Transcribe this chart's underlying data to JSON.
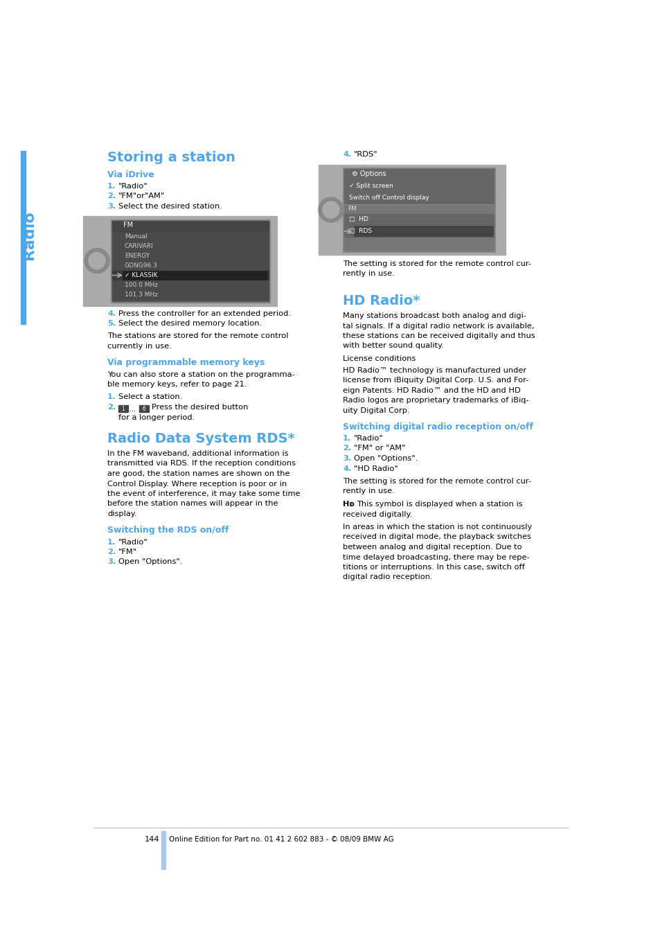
{
  "page_bg": "#ffffff",
  "blue_color": "#4da6e8",
  "text_color": "#000000",
  "light_blue_bar": "#a8c8f0",
  "page_number": "144",
  "footer_text": "Online Edition for Part no. 01 41 2 602 883 - © 08/09 BMW AG",
  "sidebar_text": "Radio",
  "title1": "Storing a station",
  "sub1": "Via iDrive",
  "item1_1": "\"Radio\"",
  "item1_2": "\"FM\"or\"AM\"",
  "item1_3": "Select the desired station.",
  "item1_4": "Press the controller for an extended period.",
  "item1_5": "Select the desired memory location.",
  "para1a": "The stations are stored for the remote control",
  "para1b": "currently in use.",
  "sub2": "Via programmable memory keys",
  "para2a": "You can also store a station on the programma-",
  "para2b": "ble memory keys, refer to page 21.",
  "item2_1": "Select a station.",
  "item2_2a": "Press the desired button",
  "item2_2b": "for a longer period.",
  "title2": "Radio Data System RDS*",
  "para3": [
    "In the FM waveband, additional information is",
    "transmitted via RDS. If the reception conditions",
    "are good, the station names are shown on the",
    "Control Display. Where reception is poor or in",
    "the event of interference, it may take some time",
    "before the station names will appear in the",
    "display."
  ],
  "sub3": "Switching the RDS on/off",
  "item3_1": "\"Radio\"",
  "item3_2": "\"FM\"",
  "item3_3": "Open \"Options\".",
  "col2_num4": "4.",
  "col2_rds": "\"RDS\"",
  "rds_setting": [
    "The setting is stored for the remote control cur-",
    "rently in use."
  ],
  "title3": "HD Radio*",
  "para4": [
    "Many stations broadcast both analog and digi-",
    "tal signals. If a digital radio network is available,",
    "these stations can be received digitally and thus",
    "with better sound quality."
  ],
  "license": "License conditions",
  "para4c": [
    "HD Radio™ technology is manufactured under",
    "license from iBiquity Digital Corp. U.S. and For-",
    "eign Patents. HD Radio™ and the HD and HD",
    "Radio logos are proprietary trademarks of iBiq-",
    "uity Digital Corp."
  ],
  "sub4": "Switching digital radio reception on/off",
  "item4_1": "\"Radio\"",
  "item4_2": "\"FM\" or \"AM\"",
  "item4_3": "Open \"Options\".",
  "item4_4": "\"HD Radio\"",
  "para5": [
    "The setting is stored for the remote control cur-",
    "rently in use."
  ],
  "para6a": "This symbol is displayed when a station is",
  "para6b": "received digitally.",
  "para7": [
    "In areas in which the station is not continuously",
    "received in digital mode, the playback switches",
    "between analog and digital reception. Due to",
    "time delayed broadcasting, there may be repe-",
    "titions or interruptions. In this case, switch off",
    "digital radio reception."
  ],
  "screen1_items": [
    "Manual",
    "CARIVARI",
    "ENERGY",
    "GONG96.3",
    "✓ KLASSIK",
    "100.0 MHz",
    "101.3 MHz"
  ],
  "screen2_items": [
    "✓ Split screen",
    "Switch off Control display",
    "FM",
    "□  HD",
    "□  RDS"
  ]
}
